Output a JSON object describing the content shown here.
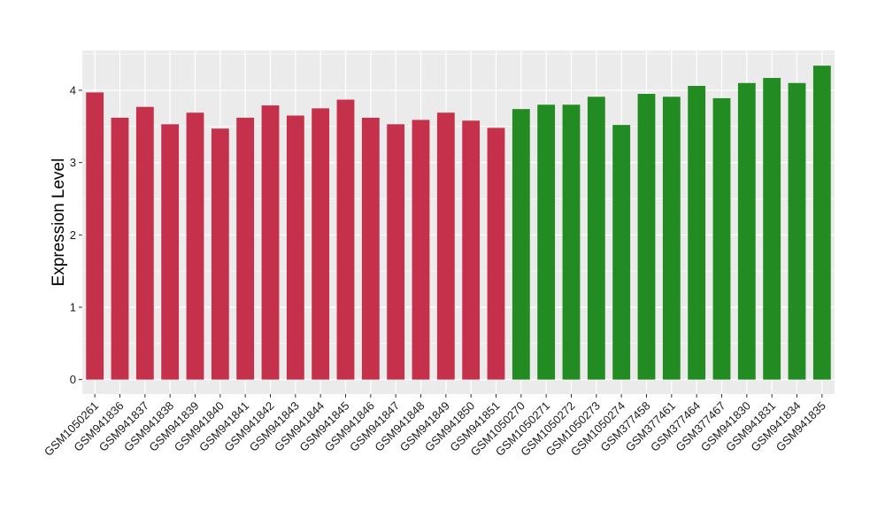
{
  "chart_data": {
    "type": "bar",
    "title": "",
    "xlabel": "",
    "ylabel": "Expression Level",
    "ylim": [
      -0.2,
      4.55
    ],
    "yticks": [
      0,
      1,
      2,
      3,
      4
    ],
    "grid": true,
    "legend": "none",
    "categories": [
      "GSM1050261",
      "GSM941836",
      "GSM941837",
      "GSM941838",
      "GSM941839",
      "GSM941840",
      "GSM941841",
      "GSM941842",
      "GSM941843",
      "GSM941844",
      "GSM941845",
      "GSM941846",
      "GSM941847",
      "GSM941848",
      "GSM941849",
      "GSM941850",
      "GSM941851",
      "GSM1050270",
      "GSM1050271",
      "GSM1050272",
      "GSM1050273",
      "GSM1050274",
      "GSM377458",
      "GSM377461",
      "GSM377464",
      "GSM377467",
      "GSM941830",
      "GSM941831",
      "GSM941834",
      "GSM941835"
    ],
    "values": [
      3.97,
      3.62,
      3.77,
      3.53,
      3.69,
      3.47,
      3.62,
      3.79,
      3.65,
      3.75,
      3.87,
      3.62,
      3.53,
      3.59,
      3.69,
      3.58,
      3.48,
      3.74,
      3.8,
      3.8,
      3.91,
      3.52,
      3.95,
      3.91,
      4.06,
      3.89,
      4.1,
      4.17,
      4.1,
      4.34
    ],
    "bar_colors": [
      "#C5314A",
      "#C5314A",
      "#C5314A",
      "#C5314A",
      "#C5314A",
      "#C5314A",
      "#C5314A",
      "#C5314A",
      "#C5314A",
      "#C5314A",
      "#C5314A",
      "#C5314A",
      "#C5314A",
      "#C5314A",
      "#C5314A",
      "#C5314A",
      "#C5314A",
      "#228B22",
      "#228B22",
      "#228B22",
      "#228B22",
      "#228B22",
      "#228B22",
      "#228B22",
      "#228B22",
      "#228B22",
      "#228B22",
      "#228B22",
      "#228B22",
      "#228B22"
    ],
    "panel_background": "#EBEBEB",
    "grid_color": "#FFFFFF"
  }
}
